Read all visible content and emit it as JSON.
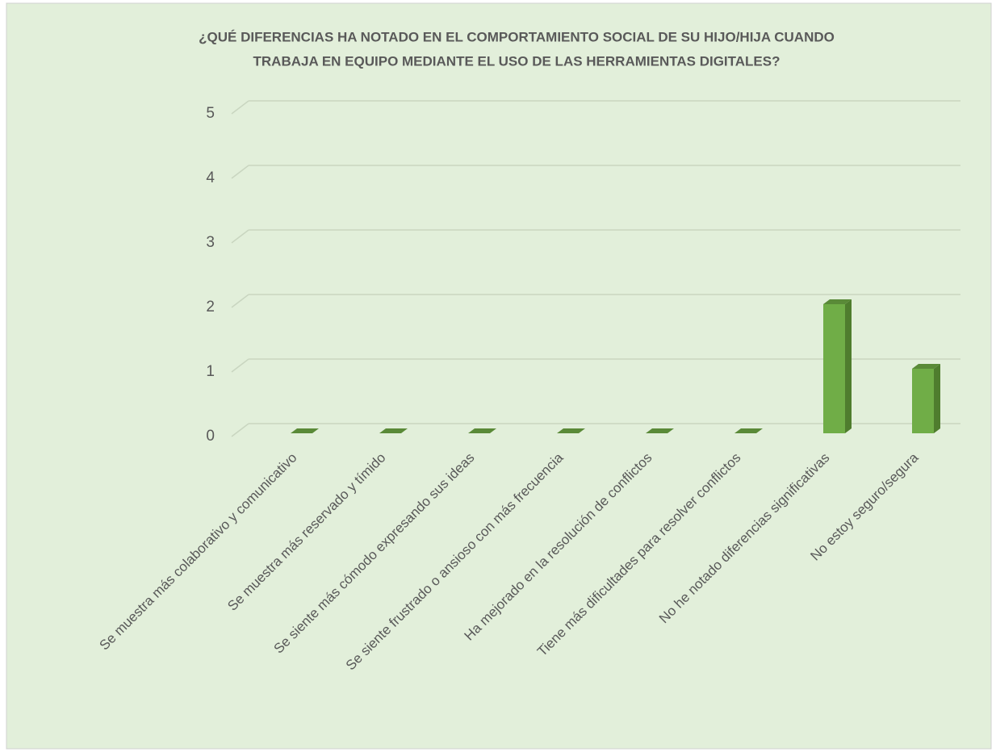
{
  "chart_data": {
    "type": "bar",
    "title": [
      "¿QUÉ DIFERENCIAS HA NOTADO EN EL COMPORTAMIENTO SOCIAL DE SU HIJO/HIJA CUANDO",
      "TRABAJA EN EQUIPO MEDIANTE EL USO DE LAS HERRAMIENTAS DIGITALES?"
    ],
    "categories": [
      "Se muestra más colaborativo y comunicativo",
      "Se muestra más reservado y tímido",
      "Se siente más cómodo expresando sus ideas",
      "Se siente frustrado o ansioso con más frecuencia",
      "Ha mejorado en la resolución de conflictos",
      "Tiene más dificultades para resolver conflictos",
      "No he notado diferencias significativas",
      "No estoy seguro/segura"
    ],
    "values": [
      0,
      0,
      0,
      0,
      0,
      0,
      2,
      1
    ],
    "color": "#70ad47",
    "ylim": [
      0,
      5
    ],
    "yticks": [
      0,
      1,
      2,
      3,
      4,
      5
    ],
    "grid": true
  }
}
